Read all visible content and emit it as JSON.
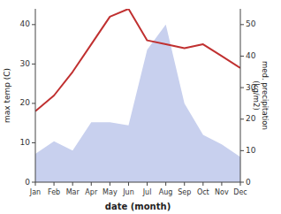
{
  "chart_data": {
    "type": "line",
    "categories": [
      "Jan",
      "Feb",
      "Mar",
      "Apr",
      "May",
      "Jun",
      "Jul",
      "Aug",
      "Sep",
      "Oct",
      "Nov",
      "Dec"
    ],
    "series": [
      {
        "type": "line",
        "color": "#c03030",
        "values": [
          18,
          22,
          28,
          35,
          42,
          44,
          36,
          35,
          34,
          35,
          32,
          29
        ]
      },
      {
        "type": "area",
        "color": "#c8d0ee",
        "axis": "y2",
        "values": [
          9,
          13,
          10,
          19,
          19,
          18,
          42,
          50,
          25,
          15,
          12,
          8
        ]
      }
    ],
    "xlabel": "date (month)",
    "ylabel": "max temp (C)",
    "y2label": "med. precipitation\n(kg/m2)",
    "ylim": [
      0,
      44
    ],
    "yticks": [
      0,
      10,
      20,
      30,
      40
    ],
    "y2lim": [
      0,
      55
    ],
    "y2ticks": [
      0,
      10,
      20,
      30,
      40,
      50
    ]
  }
}
